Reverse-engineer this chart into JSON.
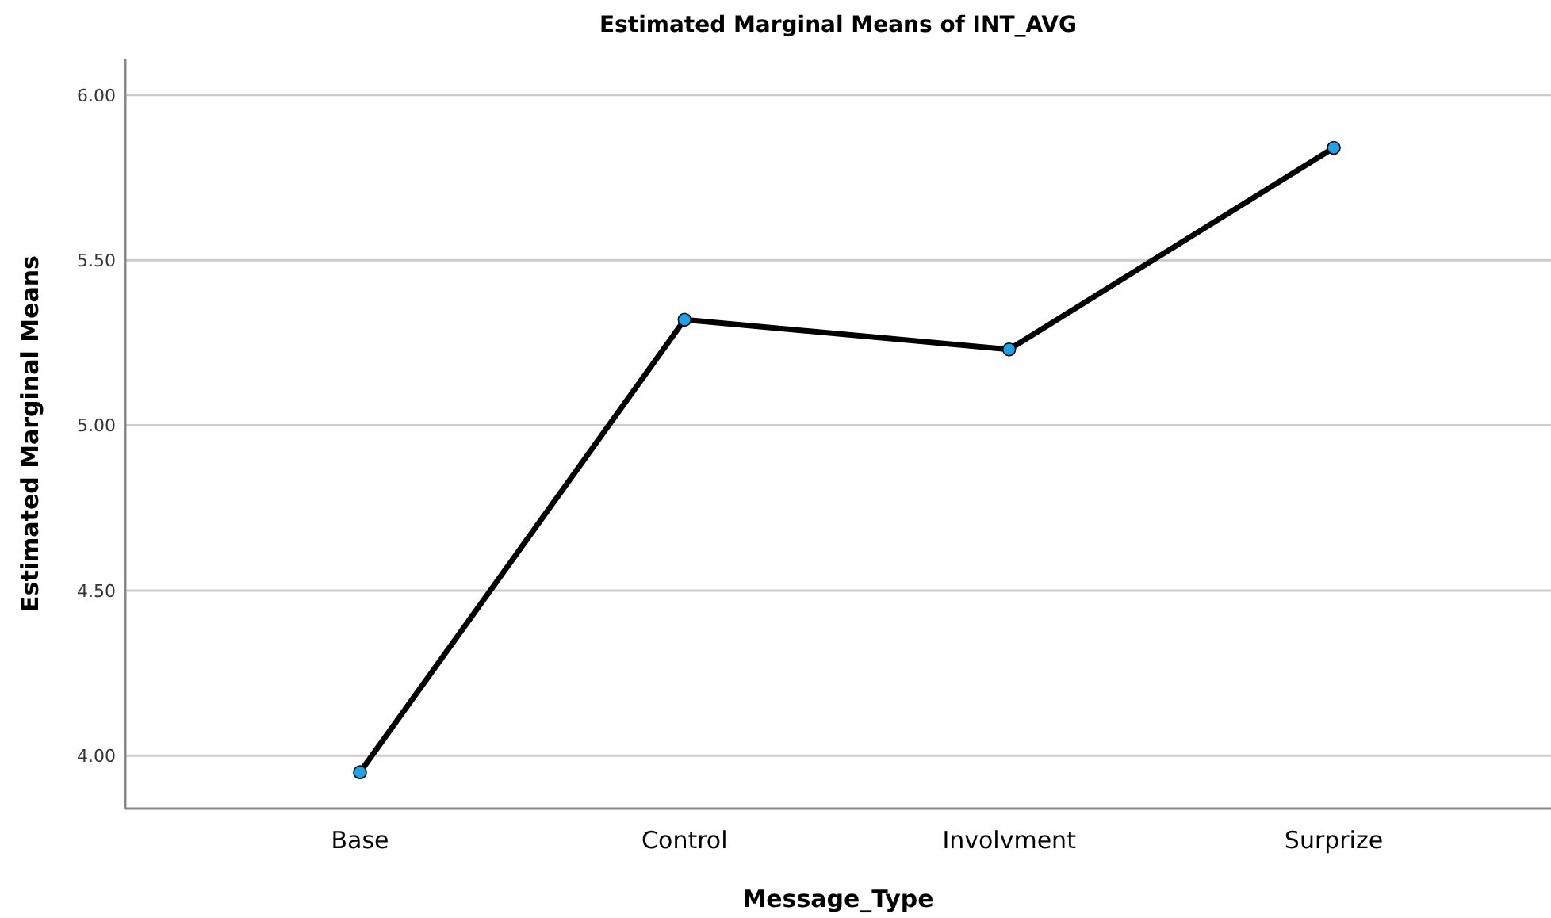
{
  "chart_data": {
    "type": "line",
    "title": "Estimated Marginal Means of INT_AVG",
    "xlabel": "Message_Type",
    "ylabel": "Estimated Marginal Means",
    "categories": [
      "Base",
      "Control",
      "Involvment",
      "Surprize"
    ],
    "series": [
      {
        "color": "#000000",
        "values": [
          3.95,
          5.32,
          5.23,
          5.84
        ]
      }
    ],
    "ylim": [
      3.84,
      6.11
    ],
    "yticks": [
      {
        "value": 4,
        "label": "4.00"
      },
      {
        "value": 4.5,
        "label": "4.50"
      },
      {
        "value": 5,
        "label": "5.00"
      },
      {
        "value": 5.5,
        "label": "5.50"
      },
      {
        "value": 6,
        "label": "6.00"
      }
    ],
    "grid": "y",
    "marker": "circle",
    "line_style": "solid"
  }
}
